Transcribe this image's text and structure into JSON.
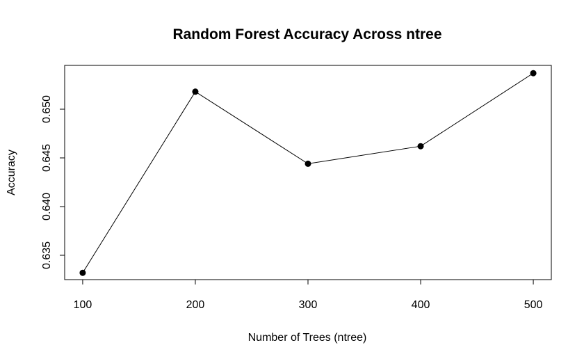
{
  "chart_data": {
    "type": "line",
    "title": "Random Forest Accuracy Across ntree",
    "xlabel": "Number of Trees (ntree)",
    "ylabel": "Accuracy",
    "x": [
      100,
      200,
      300,
      400,
      500
    ],
    "values": [
      0.6332,
      0.6518,
      0.6444,
      0.6462,
      0.6537
    ],
    "xticks": [
      "100",
      "200",
      "300",
      "400",
      "500"
    ],
    "yticks": [
      "0.635",
      "0.640",
      "0.645",
      "0.650"
    ],
    "ylim": [
      0.6325,
      0.6545
    ],
    "xlim": [
      84,
      516
    ],
    "grid": false,
    "line_color": "#000000",
    "marker_color": "#000000"
  }
}
